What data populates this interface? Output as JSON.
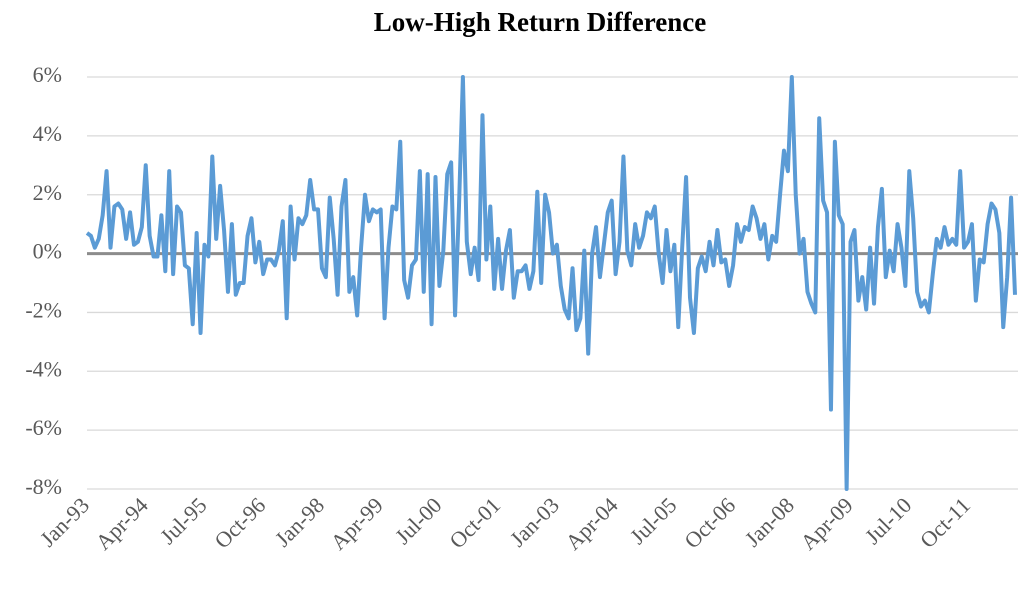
{
  "chart_data": {
    "type": "line",
    "title": "Low-High Return Difference",
    "categories": [
      "Jan-93",
      null,
      null,
      null,
      null,
      null,
      null,
      null,
      null,
      null,
      null,
      null,
      null,
      null,
      null,
      "Apr-94",
      null,
      null,
      null,
      null,
      null,
      null,
      null,
      null,
      null,
      null,
      null,
      null,
      null,
      null,
      "Jul-95",
      null,
      null,
      null,
      null,
      null,
      null,
      null,
      null,
      null,
      null,
      null,
      null,
      null,
      null,
      "Oct-96",
      null,
      null,
      null,
      null,
      null,
      null,
      null,
      null,
      null,
      null,
      null,
      null,
      null,
      null,
      "Jan-98",
      null,
      null,
      null,
      null,
      null,
      null,
      null,
      null,
      null,
      null,
      null,
      null,
      null,
      null,
      "Apr-99",
      null,
      null,
      null,
      null,
      null,
      null,
      null,
      null,
      null,
      null,
      null,
      null,
      null,
      null,
      "Jul-00",
      null,
      null,
      null,
      null,
      null,
      null,
      null,
      null,
      null,
      null,
      null,
      null,
      null,
      null,
      "Oct-01",
      null,
      null,
      null,
      null,
      null,
      null,
      null,
      null,
      null,
      null,
      null,
      null,
      null,
      null,
      "Jan-03",
      null,
      null,
      null,
      null,
      null,
      null,
      null,
      null,
      null,
      null,
      null,
      null,
      null,
      null,
      "Apr-04",
      null,
      null,
      null,
      null,
      null,
      null,
      null,
      null,
      null,
      null,
      null,
      null,
      null,
      null,
      "Jul-05",
      null,
      null,
      null,
      null,
      null,
      null,
      null,
      null,
      null,
      null,
      null,
      null,
      null,
      null,
      "Oct-06",
      null,
      null,
      null,
      null,
      null,
      null,
      null,
      null,
      null,
      null,
      null,
      null,
      null,
      null,
      "Jan-08",
      null,
      null,
      null,
      null,
      null,
      null,
      null,
      null,
      null,
      null,
      null,
      null,
      null,
      null,
      "Apr-09",
      null,
      null,
      null,
      null,
      null,
      null,
      null,
      null,
      null,
      null,
      null,
      null,
      null,
      null,
      "Jul-10",
      null,
      null,
      null,
      null,
      null,
      null,
      null,
      null,
      null,
      null,
      null,
      null,
      null,
      null,
      "Oct-11",
      null,
      null,
      null,
      null,
      null,
      null,
      null,
      null,
      null,
      null,
      null,
      null
    ],
    "values": [
      0.7,
      0.6,
      0.2,
      0.5,
      1.3,
      2.8,
      0.2,
      1.6,
      1.7,
      1.5,
      0.5,
      1.4,
      0.3,
      0.4,
      0.9,
      3.0,
      0.6,
      -0.1,
      -0.1,
      1.3,
      -0.6,
      2.8,
      -0.7,
      1.6,
      1.4,
      -0.4,
      -0.5,
      -2.4,
      0.7,
      -2.7,
      0.3,
      -0.1,
      3.3,
      0.5,
      2.3,
      0.8,
      -1.3,
      1.0,
      -1.4,
      -1.0,
      -1.0,
      0.6,
      1.2,
      -0.3,
      0.4,
      -0.7,
      -0.2,
      -0.2,
      -0.4,
      0.1,
      1.1,
      -2.2,
      1.6,
      -0.2,
      1.2,
      1.0,
      1.3,
      2.5,
      1.5,
      1.5,
      -0.5,
      -0.8,
      1.9,
      0.5,
      -1.4,
      1.6,
      2.5,
      -1.3,
      -0.8,
      -2.1,
      0.2,
      2.0,
      1.1,
      1.5,
      1.4,
      1.5,
      -2.2,
      0.2,
      1.6,
      1.5,
      3.8,
      -0.9,
      -1.5,
      -0.4,
      -0.2,
      2.8,
      -1.3,
      2.7,
      -2.4,
      2.6,
      -1.1,
      0.1,
      2.7,
      3.1,
      -2.1,
      1.6,
      6.0,
      0.4,
      -0.7,
      0.2,
      -0.9,
      4.7,
      -0.2,
      1.6,
      -1.2,
      0.5,
      -1.2,
      0.1,
      0.8,
      -1.5,
      -0.6,
      -0.6,
      -0.4,
      -1.2,
      -0.6,
      2.1,
      -1.0,
      2.0,
      1.4,
      0.0,
      0.3,
      -1.1,
      -1.9,
      -2.2,
      -0.5,
      -2.6,
      -2.2,
      0.1,
      -3.4,
      0.0,
      0.9,
      -0.8,
      0.3,
      1.4,
      1.8,
      -0.7,
      0.4,
      3.3,
      0.1,
      -0.4,
      1.0,
      0.2,
      0.6,
      1.4,
      1.2,
      1.6,
      0.0,
      -1.0,
      0.8,
      -0.6,
      0.3,
      -2.5,
      0.2,
      2.6,
      -1.5,
      -2.7,
      -0.5,
      -0.1,
      -0.6,
      0.4,
      -0.4,
      0.8,
      -0.3,
      -0.2,
      -1.1,
      -0.4,
      1.0,
      0.4,
      0.9,
      0.8,
      1.6,
      1.2,
      0.5,
      1.0,
      -0.2,
      0.6,
      0.4,
      2.0,
      3.5,
      2.8,
      6.0,
      2.0,
      0.0,
      0.5,
      -1.3,
      -1.7,
      -2.0,
      4.6,
      1.8,
      1.4,
      -5.3,
      3.8,
      1.3,
      1.0,
      -8.0,
      0.4,
      0.8,
      -1.6,
      -0.8,
      -1.9,
      0.2,
      -1.7,
      0.9,
      2.2,
      -0.8,
      0.1,
      -0.6,
      1.0,
      0.2,
      -1.1,
      2.8,
      1.2,
      -1.3,
      -1.8,
      -1.6,
      -2.0,
      -0.7,
      0.5,
      0.2,
      0.9,
      0.3,
      0.5,
      0.3,
      2.8,
      0.2,
      0.4,
      1.0,
      -1.6,
      -0.2,
      -0.3,
      1.0,
      1.7,
      1.5,
      0.7,
      -2.5,
      -0.8,
      1.9,
      -1.4
    ],
    "color": "#5b9bd5",
    "ylim": [
      -8,
      6
    ],
    "yticks": [
      {
        "value": -8,
        "label": "-8%"
      },
      {
        "value": -6,
        "label": "-6%"
      },
      {
        "value": -4,
        "label": "-4%"
      },
      {
        "value": -2,
        "label": "-2%"
      },
      {
        "value": 0,
        "label": "0%"
      },
      {
        "value": 2,
        "label": "2%"
      },
      {
        "value": 4,
        "label": "4%"
      },
      {
        "value": 6,
        "label": "6%"
      }
    ],
    "grid": true
  }
}
